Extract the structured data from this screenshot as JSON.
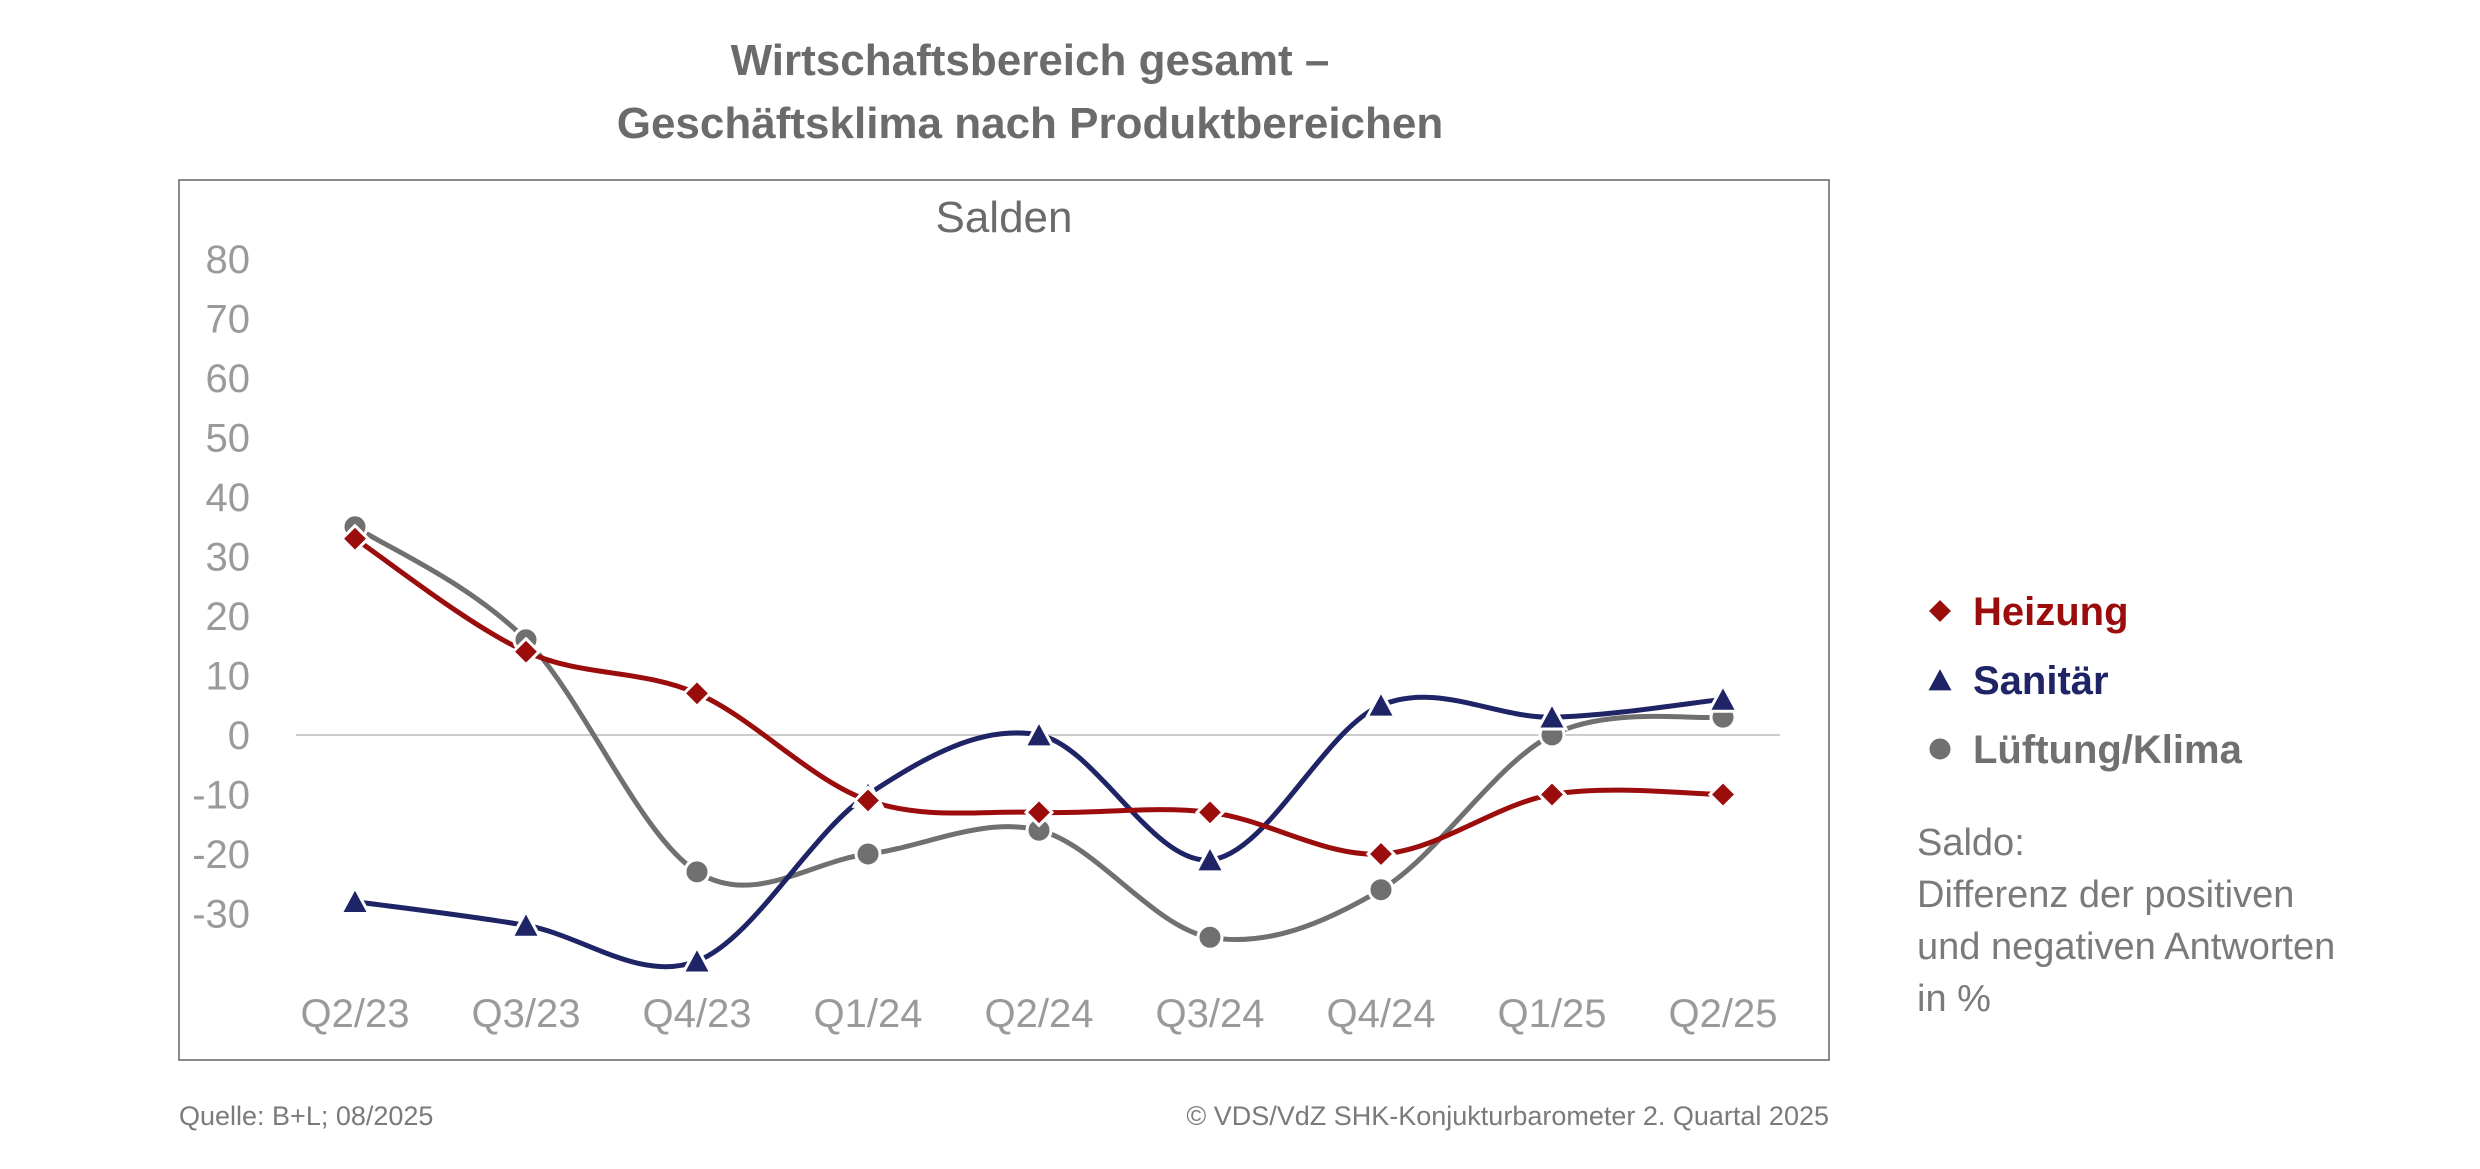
{
  "title_line1": "Wirtschaftsbereich gesamt –",
  "title_line2": "Geschäftsklima nach Produktbereichen",
  "source": "Quelle: B+L; 08/2025",
  "copyright": "© VDS/VdZ SHK-Konjukturbarometer 2. Quartal 2025",
  "note": [
    "Saldo:",
    "Differenz der positiven",
    "und negativen Antworten",
    "in %"
  ],
  "chart_data": {
    "type": "line",
    "subtitle": "Salden",
    "categories": [
      "Q2/23",
      "Q3/23",
      "Q4/23",
      "Q1/24",
      "Q2/24",
      "Q3/24",
      "Q4/24",
      "Q1/25",
      "Q2/25"
    ],
    "y_ticks": [
      "80",
      "70",
      "60",
      "50",
      "40",
      "30",
      "20",
      "10",
      "0",
      "-10",
      "-20",
      "-30"
    ],
    "ylim": [
      -40,
      80
    ],
    "zero_line": true,
    "grid": false,
    "legend_position": "right",
    "series": [
      {
        "name": "Heizung",
        "color": "#9b0c0c",
        "marker": "diamond",
        "values": [
          33,
          14,
          7,
          -11,
          -13,
          -13,
          -20,
          -10,
          -10
        ]
      },
      {
        "name": "Sanitär",
        "color": "#1e2466",
        "marker": "triangle",
        "values": [
          -28,
          -32,
          -38,
          -10,
          0,
          -21,
          5,
          3,
          6
        ]
      },
      {
        "name": "Lüftung/Klima",
        "color": "#707070",
        "marker": "circle",
        "values": [
          35,
          16,
          -23,
          -20,
          -16,
          -34,
          -26,
          0,
          3
        ]
      }
    ]
  }
}
